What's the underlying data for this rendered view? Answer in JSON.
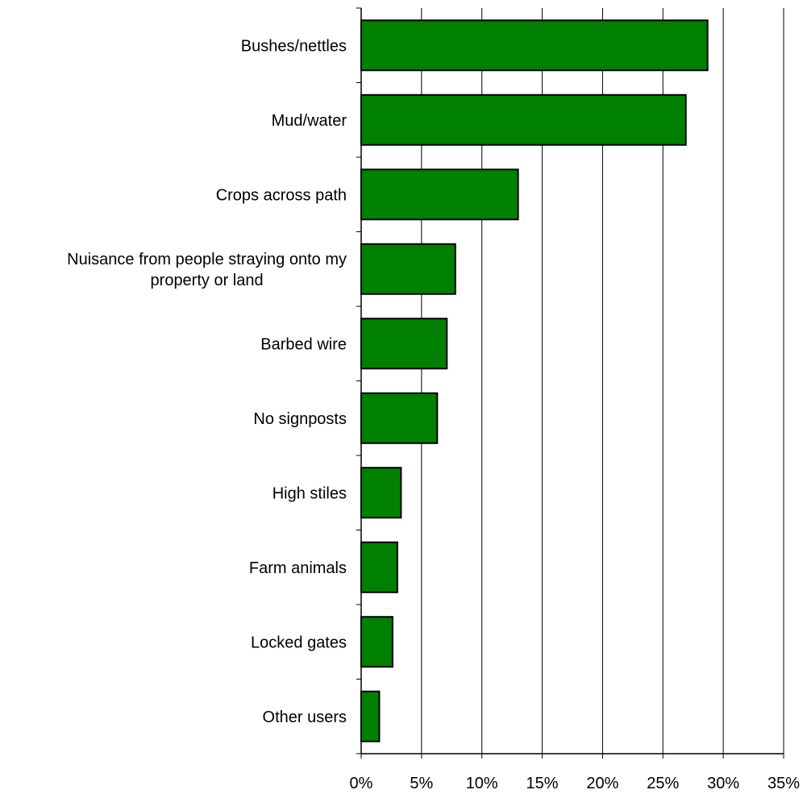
{
  "chart_data": {
    "type": "bar",
    "orientation": "horizontal",
    "title": "",
    "xlabel": "",
    "ylabel": "",
    "categories": [
      "Bushes/nettles",
      "Mud/water",
      "Crops across path",
      "Nuisance from people straying onto my property or land",
      "Barbed wire",
      "No signposts",
      "High stiles",
      "Farm animals",
      "Locked gates",
      "Other users"
    ],
    "category_lines": [
      [
        "Bushes/nettles"
      ],
      [
        "Mud/water"
      ],
      [
        "Crops across path"
      ],
      [
        "Nuisance from people straying onto my",
        "property or land"
      ],
      [
        "Barbed wire"
      ],
      [
        "No signposts"
      ],
      [
        "High stiles"
      ],
      [
        "Farm animals"
      ],
      [
        "Locked gates"
      ],
      [
        "Other users"
      ]
    ],
    "values": [
      28.7,
      26.9,
      13.0,
      7.8,
      7.1,
      6.3,
      3.3,
      3.0,
      2.6,
      1.5
    ],
    "xlim": [
      0,
      35
    ],
    "x_ticks": [
      0,
      5,
      10,
      15,
      20,
      25,
      30,
      35
    ],
    "x_tick_labels": [
      "0%",
      "5%",
      "10%",
      "15%",
      "20%",
      "25%",
      "30%",
      "35%"
    ],
    "grid": "vertical",
    "legend": "none",
    "bar_color": "#008000",
    "bar_edge_color": "#000000"
  }
}
